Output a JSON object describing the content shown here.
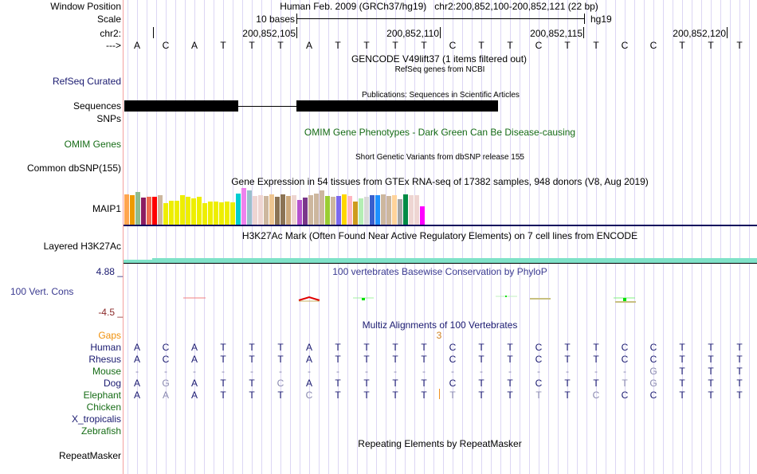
{
  "header": {
    "window_position_label": "Window Position",
    "title": "Human Feb. 2009 (GRCh37/hg19)   chr2:200,852,100-200,852,121 (22 bp)",
    "scale_label": "Scale",
    "scale_text": "10 bases",
    "assembly": "hg19",
    "chrom_label": "chr2:",
    "strand_label": "--->",
    "positions": [
      "200,852,105",
      "200,852,110",
      "200,852,115",
      "200,852,120"
    ]
  },
  "sequence": "ACATTTATTTTCTTCTTCCTTT",
  "tracks": {
    "gencode_title": "GENCODE V49lift37 (1 items filtered out)",
    "refseq_title": "RefSeq genes from NCBI",
    "refseq_label": "RefSeq Curated",
    "publications_title": "Publications: Sequences in Scientific Articles",
    "sequences_label": "Sequences",
    "snps_label": "SNPs",
    "omim_title": "OMIM Gene Phenotypes - Dark Green Can Be Disease-causing",
    "omim_label": "OMIM Genes",
    "dbsnp_title": "Short Genetic Variants from dbSNP release 155",
    "dbsnp_label": "Common dbSNP(155)",
    "gtex_title": "Gene Expression in 54 tissues from GTEx RNA-seq of 17382 samples, 948 donors (V8, Aug 2019)",
    "gtex_label": "MAIP1",
    "h3k27ac_title": "H3K27Ac Mark (Often Found Near Active Regulatory Elements) on 7 cell lines from ENCODE",
    "h3k27ac_label": "Layered H3K27Ac",
    "phylop_title": "100 vertebrates Basewise Conservation by PhyloP",
    "phylop_label": "100 Vert. Cons",
    "phylop_max": "4.88 _",
    "phylop_min": "-4.5 _",
    "multiz_title": "Multiz Alignments of 100 Vertebrates",
    "gaps_label": "Gaps",
    "gap_count": "3",
    "repeat_title": "Repeating Elements by RepeatMasker",
    "repeat_label": "RepeatMasker"
  },
  "gtex": {
    "colors": [
      "#FFA54F",
      "#EE9A00",
      "#8FBC8F",
      "#8B1C62",
      "#EE6A50",
      "#FF0000",
      "#CDB79E",
      "#EEEE00",
      "#EEEE00",
      "#EEEE00",
      "#EEEE00",
      "#EEEE00",
      "#EEEE00",
      "#EEEE00",
      "#EEEE00",
      "#EEEE00",
      "#EEEE00",
      "#EEEE00",
      "#EEEE00",
      "#EEEE00",
      "#00CED1",
      "#EE82EE",
      "#9AC0CD",
      "#EED5D2",
      "#EED5D2",
      "#CDB79E",
      "#EEC591",
      "#8B7355",
      "#8B7355",
      "#CDAA7D",
      "#EED5D2",
      "#B452CD",
      "#7A378B",
      "#CDB79E",
      "#CDB79E",
      "#CDB79E",
      "#9ACD32",
      "#CDB79E",
      "#7B68EE",
      "#FFD700",
      "#FFB6C1",
      "#CD9B1D",
      "#B4EEB4",
      "#D9D9D9",
      "#3A5FCD",
      "#1E90FF",
      "#CDB79E",
      "#CDB79E",
      "#FFD39B",
      "#A6A6A6",
      "#008B45",
      "#EED5D2",
      "#EED5D2",
      "#FF00FF"
    ],
    "values": [
      38,
      37,
      41,
      34,
      35,
      35,
      37,
      27,
      30,
      30,
      37,
      35,
      33,
      35,
      27,
      29,
      29,
      28,
      29,
      28,
      39,
      46,
      43,
      36,
      37,
      36,
      38,
      35,
      38,
      36,
      37,
      31,
      34,
      37,
      39,
      43,
      36,
      35,
      36,
      38,
      36,
      29,
      33,
      35,
      37,
      37,
      38,
      36,
      37,
      32,
      38,
      37,
      37,
      23
    ]
  },
  "alignment": [
    {
      "species": "Human",
      "color": "#1a1a70",
      "seq": "ACATTTATTTTCTTCTTCCTTT",
      "light": "0000000000000000000000"
    },
    {
      "species": "Rhesus",
      "color": "#1a1a70",
      "seq": "ACATTTATTTTCTTCTTCCTTT",
      "light": "0000000000000000000000"
    },
    {
      "species": "Mouse",
      "color": "#166c16",
      "seq": "------------------GTTT",
      "light": "1111111111111111111000"
    },
    {
      "species": "Dog",
      "color": "#1a1a70",
      "seq": "AGATTCATTTTCTTCTTTGTTT",
      "light": "0100010000000000011000"
    },
    {
      "species": "Elephant",
      "color": "#166c16",
      "seq": "AAATTTCTTTTTTTTTCCCTTT",
      "light": "0100001000010010100000"
    },
    {
      "species": "Chicken",
      "color": "#166c16",
      "seq": "",
      "light": ""
    },
    {
      "species": "X_tropicalis",
      "color": "#1a1a70",
      "seq": "",
      "light": ""
    },
    {
      "species": "Zebrafish",
      "color": "#166c16",
      "seq": "",
      "light": ""
    }
  ]
}
